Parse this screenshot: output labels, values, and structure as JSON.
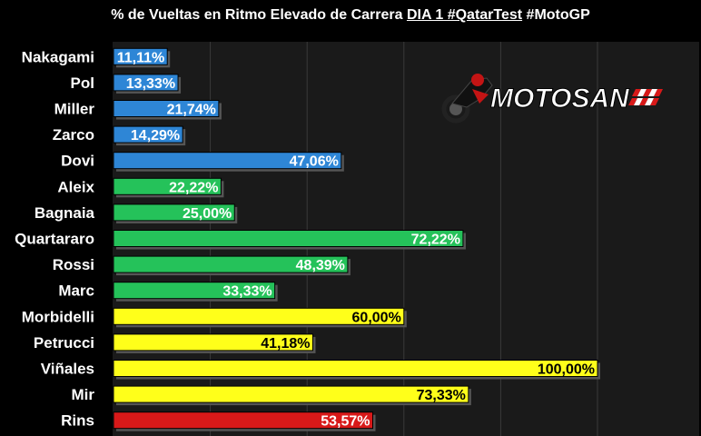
{
  "title": {
    "prefix": "% de Vueltas en Ritmo Elevado de Carrera ",
    "highlight": "DIA 1 #QatarTest",
    "suffix": " #MotoGP"
  },
  "logo": {
    "text": "MOTOSAN",
    "icon": "motorbike-rider-icon"
  },
  "colors": {
    "blue": "#2e86d6",
    "green": "#25c25a",
    "yellow": "#ffff1a",
    "red": "#d81919",
    "grid": "#3a3a3a",
    "plot_bg": "#1a1a1a"
  },
  "chart_data": {
    "type": "bar",
    "orientation": "horizontal",
    "xlim": [
      0,
      100
    ],
    "grid": true,
    "categories": [
      "Nakagami",
      "Pol",
      "Miller",
      "Zarco",
      "Dovi",
      "Aleix",
      "Bagnaia",
      "Quartararo",
      "Rossi",
      "Marc",
      "Morbidelli",
      "Petrucci",
      "Viñales",
      "Mir",
      "Rins"
    ],
    "values": [
      11.11,
      13.33,
      21.74,
      14.29,
      47.06,
      22.22,
      25.0,
      72.22,
      48.39,
      33.33,
      60.0,
      41.18,
      100.0,
      73.33,
      53.57
    ],
    "labels": [
      "11,11%",
      "13,33%",
      "21,74%",
      "14,29%",
      "47,06%",
      "22,22%",
      "25,00%",
      "72,22%",
      "48,39%",
      "33,33%",
      "60,00%",
      "41,18%",
      "100,00%",
      "73,33%",
      "53,57%"
    ],
    "bar_colors": [
      "blue",
      "blue",
      "blue",
      "blue",
      "blue",
      "green",
      "green",
      "green",
      "green",
      "green",
      "yellow",
      "yellow",
      "yellow",
      "yellow",
      "red"
    ]
  }
}
